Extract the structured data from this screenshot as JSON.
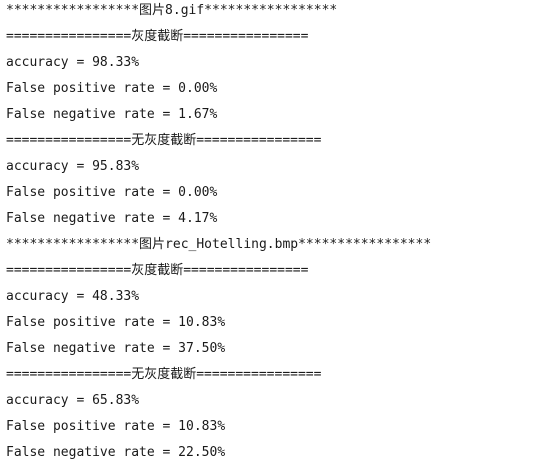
{
  "console": {
    "lines": [
      "*****************图片8.gif*****************",
      "================灰度截断================",
      "accuracy = 98.33%",
      "False positive rate = 0.00%",
      "False negative rate = 1.67%",
      "================无灰度截断================",
      "accuracy = 95.83%",
      "False positive rate = 0.00%",
      "False negative rate = 4.17%",
      "*****************图片rec_Hotelling.bmp*****************",
      "================灰度截断================",
      "accuracy = 48.33%",
      "False positive rate = 10.83%",
      "False negative rate = 37.50%",
      "================无灰度截断================",
      "accuracy = 65.83%",
      "False positive rate = 10.83%",
      "False negative rate = 22.50%"
    ]
  }
}
